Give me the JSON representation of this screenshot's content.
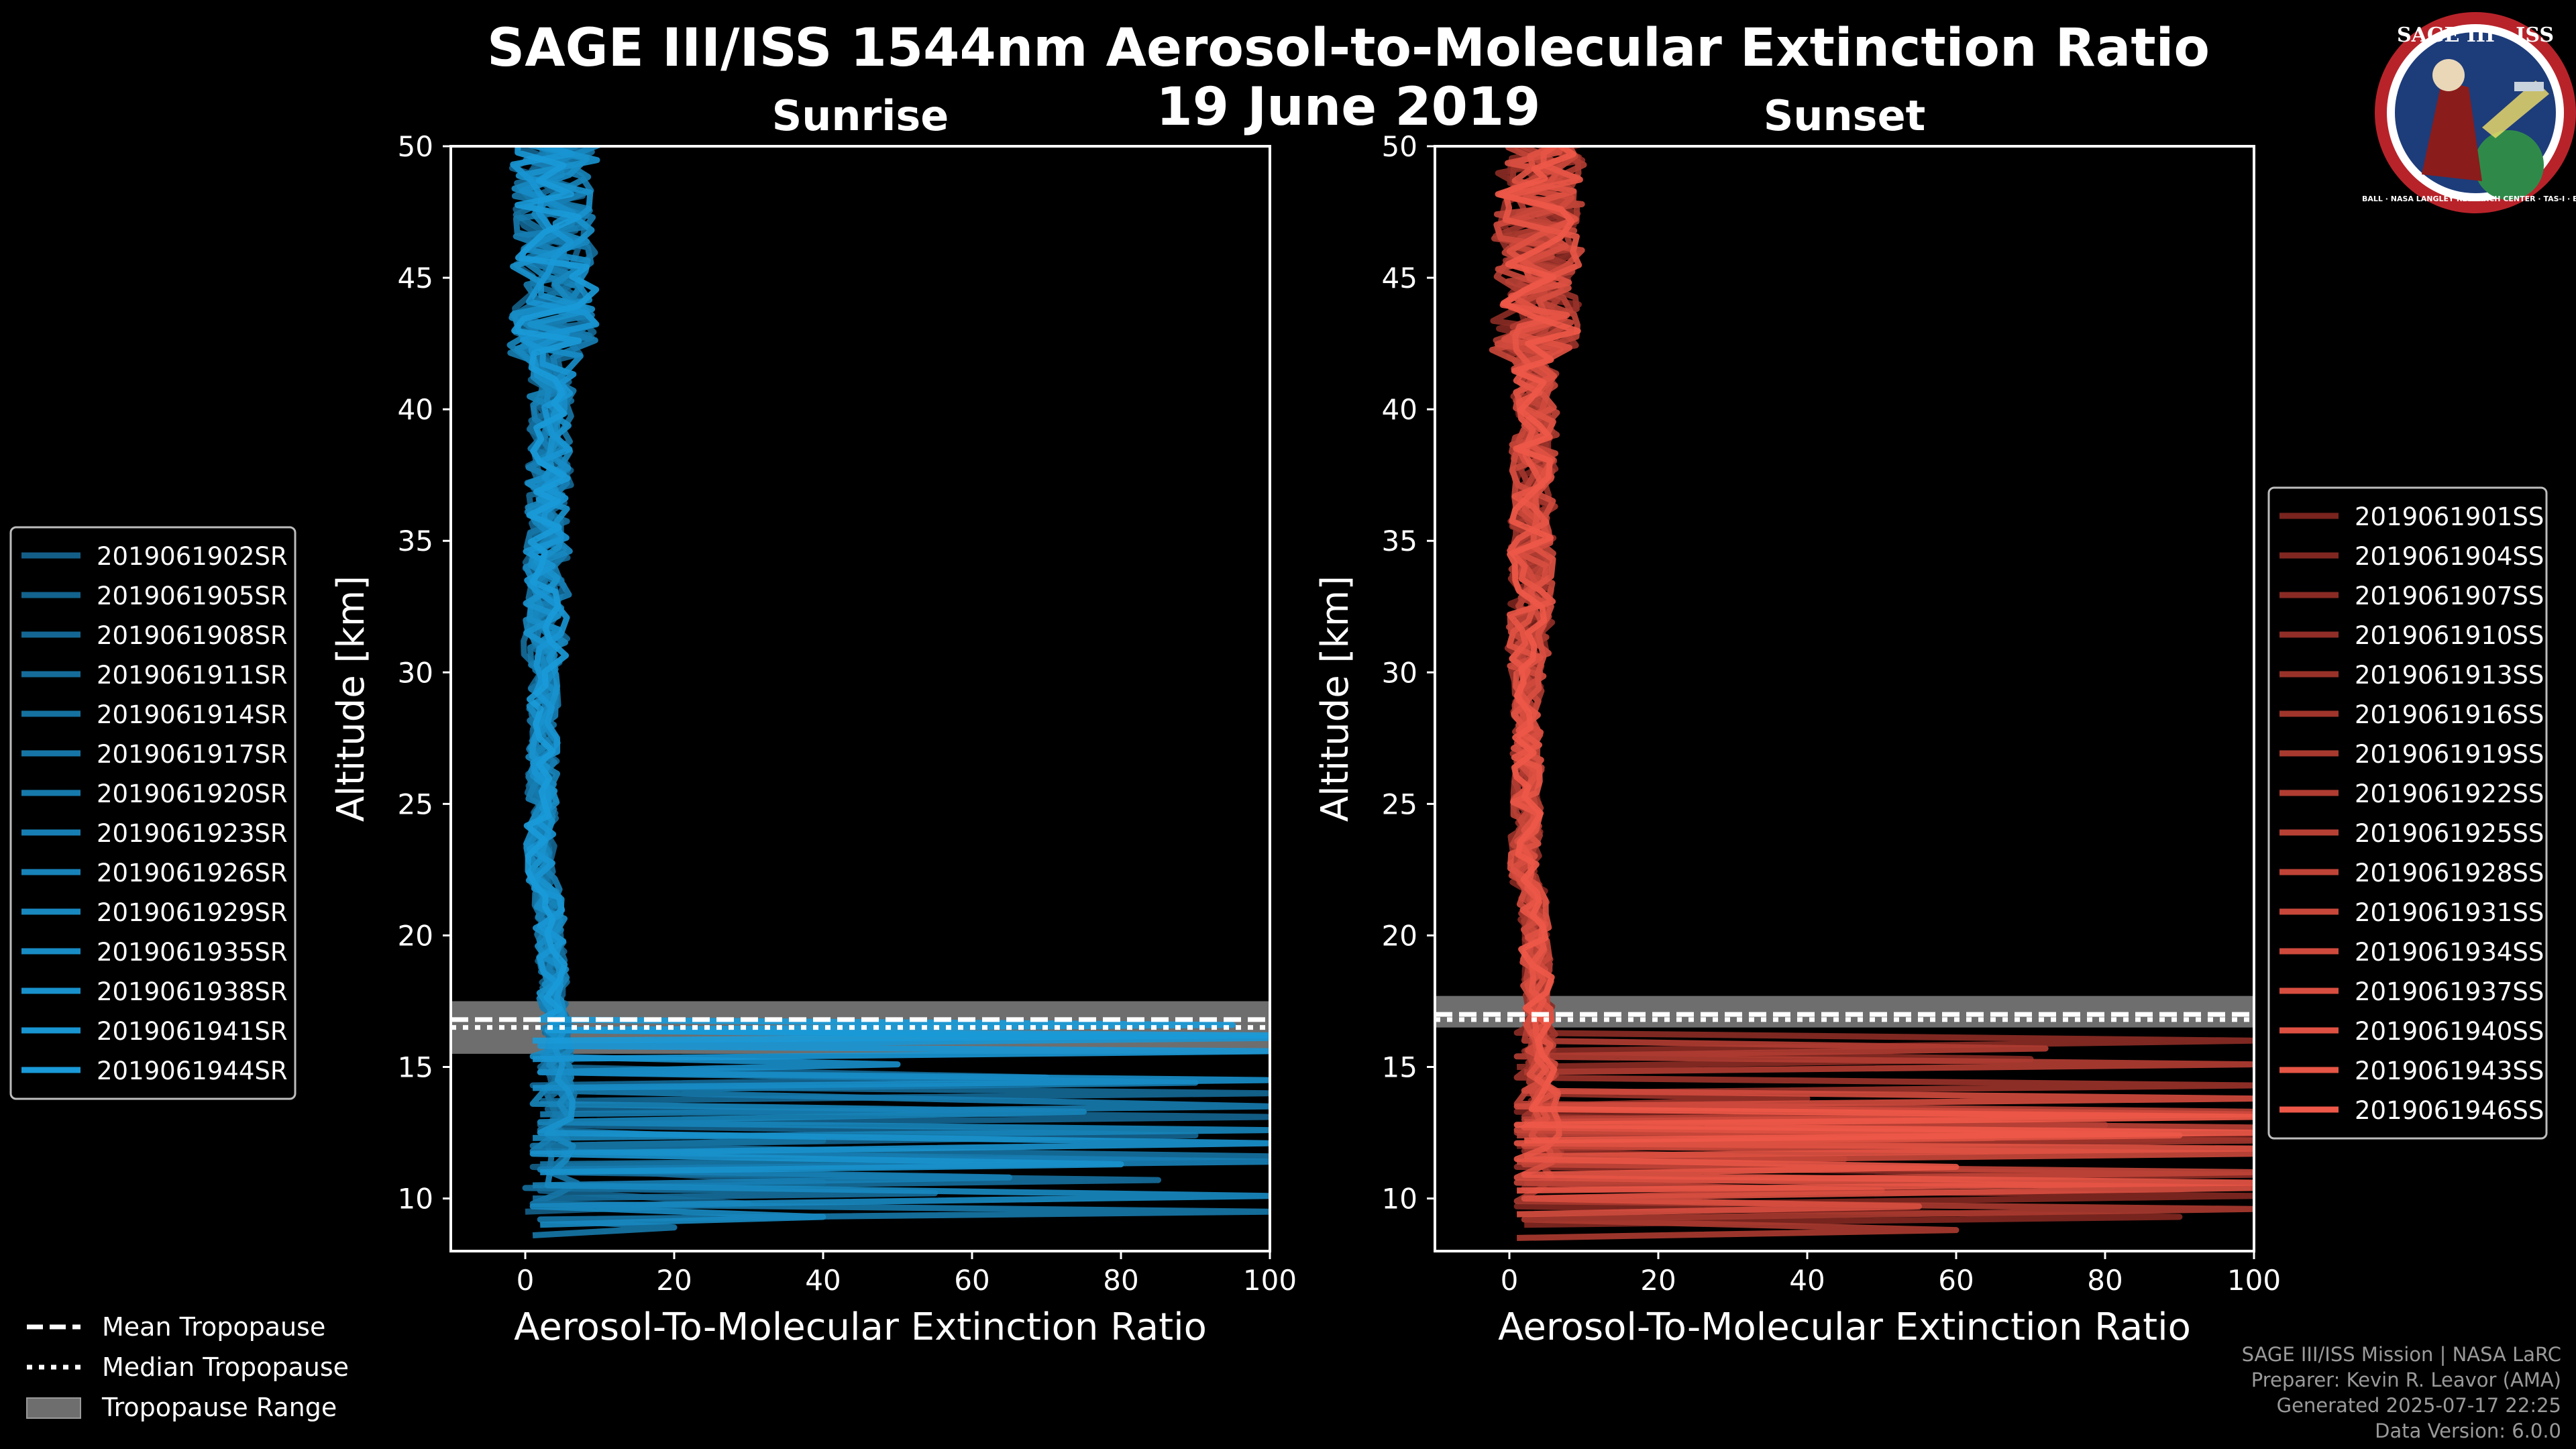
{
  "header": {
    "title": "SAGE III/ISS 1544nm Aerosol-to-Molecular Extinction Ratio",
    "date": "19 June 2019"
  },
  "logo": {
    "name": "SAGE III · ISS",
    "ring": "BALL · NASA LANGLEY RESEARCH CENTER · TAS-I · ESA"
  },
  "tropopause_legend": [
    {
      "key": "mean",
      "label": "Mean Tropopause"
    },
    {
      "key": "median",
      "label": "Median Tropopause"
    },
    {
      "key": "range",
      "label": "Tropopause Range"
    }
  ],
  "footer": {
    "line1": "SAGE III/ISS Mission | NASA LaRC",
    "line2": "Preparer: Kevin R. Leavor (AMA)",
    "line3": "Generated 2025-07-17 22:25",
    "line4": "Data Version: 6.0.0"
  },
  "chart_data": [
    {
      "type": "line",
      "title": "Sunrise",
      "xlabel": "Aerosol-To-Molecular Extinction Ratio",
      "ylabel": "Altitude [km]",
      "xlim": [
        -10,
        100
      ],
      "ylim": [
        8,
        50
      ],
      "xticks": [
        0,
        20,
        40,
        60,
        80,
        100
      ],
      "yticks": [
        10,
        15,
        20,
        25,
        30,
        35,
        40,
        45,
        50
      ],
      "color_light": "#1a9ad8",
      "color_dark": "#0f3e5c",
      "tropopause": {
        "mean": 16.8,
        "median": 16.5,
        "range": [
          15.5,
          17.5
        ]
      },
      "series": [
        {
          "name": "2019061902SR",
          "x": [
            0,
            30,
            2,
            40,
            1,
            60
          ],
          "y": [
            9.5,
            9.8,
            10.3,
            10.6,
            11.2,
            11.5
          ]
        },
        {
          "name": "2019061905SR",
          "x": [
            1,
            90,
            2,
            100,
            3
          ],
          "y": [
            12.0,
            12.4,
            12.8,
            13.1,
            13.4
          ]
        },
        {
          "name": "2019061908SR",
          "x": [
            2,
            100,
            1,
            70,
            2
          ],
          "y": [
            13.7,
            14.0,
            14.3,
            14.6,
            15.0
          ]
        },
        {
          "name": "2019061911SR",
          "x": [
            1,
            55,
            0,
            85,
            3
          ],
          "y": [
            10.0,
            10.2,
            10.4,
            10.7,
            11.0
          ]
        },
        {
          "name": "2019061914SR",
          "x": [
            2,
            100,
            1,
            40,
            2
          ],
          "y": [
            11.3,
            11.6,
            12.0,
            12.2,
            12.6
          ]
        },
        {
          "name": "2019061917SR",
          "x": [
            1,
            20,
            2,
            100,
            1
          ],
          "y": [
            8.6,
            8.9,
            9.2,
            9.5,
            9.8
          ]
        },
        {
          "name": "2019061920SR",
          "x": [
            2,
            100,
            3,
            90,
            2
          ],
          "y": [
            13.2,
            13.5,
            14.1,
            14.4,
            14.8
          ]
        },
        {
          "name": "2019061923SR",
          "x": [
            1,
            65,
            2,
            100,
            1
          ],
          "y": [
            10.5,
            10.8,
            11.1,
            11.4,
            11.8
          ]
        },
        {
          "name": "2019061926SR",
          "x": [
            1,
            100,
            2,
            75,
            1
          ],
          "y": [
            12.3,
            12.6,
            12.9,
            13.3,
            13.6
          ]
        },
        {
          "name": "2019061929SR",
          "x": [
            2,
            40,
            1,
            100,
            3
          ],
          "y": [
            9.0,
            9.3,
            9.7,
            10.1,
            10.5
          ]
        },
        {
          "name": "2019061935SR",
          "x": [
            1,
            100,
            2,
            50,
            1
          ],
          "y": [
            14.2,
            14.5,
            14.8,
            15.1,
            15.4
          ]
        },
        {
          "name": "2019061938SR",
          "x": [
            2,
            80,
            1,
            100,
            2
          ],
          "y": [
            11.0,
            11.3,
            11.7,
            12.1,
            12.5
          ]
        },
        {
          "name": "2019061941SR",
          "x": [
            1,
            100,
            2,
            100,
            3
          ],
          "y": [
            15.3,
            15.6,
            15.8,
            16.1,
            16.4
          ]
        },
        {
          "name": "2019061944SR",
          "x": [
            1,
            100,
            3,
            95,
            2
          ],
          "y": [
            16.0,
            16.2,
            16.4,
            16.6,
            16.8
          ]
        }
      ]
    },
    {
      "type": "line",
      "title": "Sunset",
      "xlabel": "Aerosol-To-Molecular Extinction Ratio",
      "ylabel": "Altitude [km]",
      "xlim": [
        -10,
        100
      ],
      "ylim": [
        8,
        50
      ],
      "xticks": [
        0,
        20,
        40,
        60,
        80,
        100
      ],
      "yticks": [
        10,
        15,
        20,
        25,
        30,
        35,
        40,
        45,
        50
      ],
      "color_light": "#ee5848",
      "color_dark": "#3a0808",
      "tropopause": {
        "mean": 17.0,
        "median": 16.8,
        "range": [
          16.5,
          17.7
        ]
      },
      "series": [
        {
          "name": "2019061901SS",
          "x": [
            1,
            100,
            2,
            60,
            1
          ],
          "y": [
            12.0,
            12.3,
            12.6,
            13.0,
            13.3
          ]
        },
        {
          "name": "2019061904SS",
          "x": [
            2,
            90,
            1,
            100,
            2
          ],
          "y": [
            9.0,
            9.3,
            9.7,
            10.1,
            10.4
          ]
        },
        {
          "name": "2019061907SS",
          "x": [
            1,
            70,
            2,
            100,
            1
          ],
          "y": [
            15.0,
            15.3,
            15.6,
            16.0,
            16.3
          ]
        },
        {
          "name": "2019061910SS",
          "x": [
            2,
            100,
            1,
            45,
            2
          ],
          "y": [
            10.6,
            10.9,
            11.2,
            11.5,
            11.8
          ]
        },
        {
          "name": "2019061913SS",
          "x": [
            1,
            40,
            2,
            100,
            1
          ],
          "y": [
            13.5,
            13.8,
            14.0,
            14.3,
            14.6
          ]
        },
        {
          "name": "2019061916SS",
          "x": [
            2,
            100,
            1,
            80,
            2
          ],
          "y": [
            11.9,
            12.2,
            12.5,
            12.8,
            13.1
          ]
        },
        {
          "name": "2019061919SS",
          "x": [
            1,
            60,
            2,
            100,
            1
          ],
          "y": [
            8.5,
            8.8,
            9.2,
            9.6,
            9.9
          ]
        },
        {
          "name": "2019061922SS",
          "x": [
            2,
            100,
            1,
            72,
            2
          ],
          "y": [
            14.8,
            15.1,
            15.4,
            15.7,
            16.0
          ]
        },
        {
          "name": "2019061925SS",
          "x": [
            1,
            100,
            2,
            100,
            1
          ],
          "y": [
            12.4,
            12.7,
            13.0,
            13.3,
            13.6
          ]
        },
        {
          "name": "2019061928SS",
          "x": [
            2,
            50,
            1,
            100,
            2
          ],
          "y": [
            10.0,
            10.3,
            10.6,
            11.0,
            11.3
          ]
        },
        {
          "name": "2019061931SS",
          "x": [
            1,
            100,
            2,
            65,
            1
          ],
          "y": [
            11.4,
            11.7,
            12.0,
            12.3,
            12.6
          ]
        },
        {
          "name": "2019061934SS",
          "x": [
            2,
            100,
            1,
            100,
            2
          ],
          "y": [
            12.9,
            13.2,
            13.5,
            13.8,
            14.1
          ]
        },
        {
          "name": "2019061937SS",
          "x": [
            1,
            55,
            2,
            100,
            1
          ],
          "y": [
            9.4,
            9.7,
            10.0,
            10.4,
            10.8
          ]
        },
        {
          "name": "2019061940SS",
          "x": [
            2,
            100,
            1,
            90,
            2
          ],
          "y": [
            11.6,
            11.9,
            12.1,
            12.4,
            12.7
          ]
        },
        {
          "name": "2019061943SS",
          "x": [
            1,
            100,
            2,
            60,
            1
          ],
          "y": [
            10.3,
            10.6,
            10.9,
            11.2,
            11.5
          ]
        },
        {
          "name": "2019061946SS",
          "x": [
            2,
            100,
            1,
            100,
            3
          ],
          "y": [
            12.2,
            12.5,
            12.8,
            13.1,
            13.4
          ]
        }
      ]
    }
  ]
}
